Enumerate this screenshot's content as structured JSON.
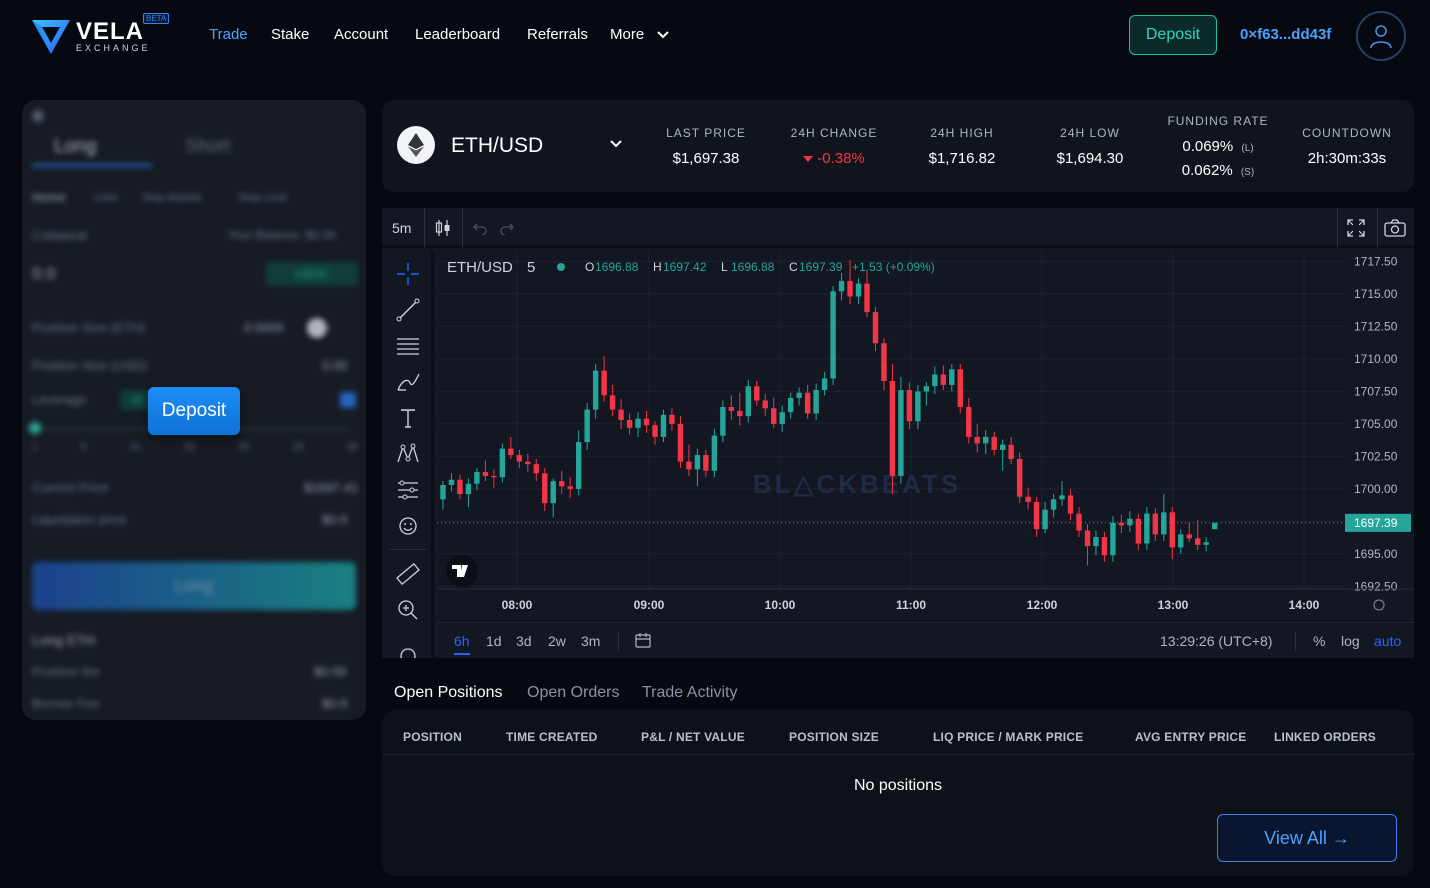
{
  "brand": {
    "name": "VELA",
    "sub": "EXCHANGE",
    "badge": "BETA"
  },
  "nav": {
    "items": [
      {
        "label": "Trade",
        "active": true
      },
      {
        "label": "Stake"
      },
      {
        "label": "Account"
      },
      {
        "label": "Leaderboard"
      },
      {
        "label": "Referrals"
      },
      {
        "label": "More"
      }
    ],
    "deposit_label": "Deposit",
    "wallet_address": "0×f63...dd43f"
  },
  "order_panel": {
    "tabs": [
      "Long",
      "Short"
    ],
    "order_types": [
      "Market",
      "Limit",
      "Stop Market",
      "Stop Limit"
    ],
    "collateral_label": "Collateral",
    "balance_label": "Your Balance: $0.00",
    "collateral_value": "0.0",
    "collateral_token": "USDC",
    "position_size_eth_label": "Position Size (ETH)",
    "position_size_eth_value": "0.0000",
    "position_size_usd_label": "Position Size (USD)",
    "position_size_usd_value": "0.00",
    "leverage_label": "Leverage",
    "leverage_value": "10",
    "leverage_marks": [
      "1",
      "5",
      "10",
      "15",
      "20",
      "25",
      "30"
    ],
    "leverage_level": 0.0,
    "current_price_label": "Current Price",
    "current_price_value": "$1697.41",
    "liquidation_label": "Liquidation price",
    "liquidation_value": "$0.0",
    "submit_label": "Long",
    "summary_title": "Long ETH",
    "position_fee_label": "Position fee",
    "position_fee_value": "$0.00",
    "borrow_fee_label": "Borrow Fee",
    "borrow_fee_value": "$0.0",
    "overlay_deposit_label": "Deposit"
  },
  "ticker": {
    "pair": "ETH/USD",
    "last_price_label": "LAST PRICE",
    "last_price": "$1,697.38",
    "change_label": "24H CHANGE",
    "change": "-0.38%",
    "high_label": "24H HIGH",
    "high": "$1,716.82",
    "low_label": "24H LOW",
    "low": "$1,694.30",
    "funding_label": "FUNDING RATE",
    "funding_long": "0.069%",
    "funding_long_tag": "(L)",
    "funding_short": "0.062%",
    "funding_short_tag": "(S)",
    "countdown_label": "COUNTDOWN",
    "countdown": "2h:30m:33s"
  },
  "chart": {
    "interval": "5m",
    "legend_pair": "ETH/USD",
    "legend_interval": "5",
    "ohlc": {
      "o_label": "O",
      "o": "1696.88",
      "h_label": "H",
      "h": "1697.42",
      "l_label": "L",
      "l": "1696.88",
      "c_label": "C",
      "c": "1697.39",
      "change": "+1.53 (+0.09%)"
    },
    "last_price_tag": "1697.39",
    "watermark": "BL△CKBEATS",
    "timeframes": [
      "6h",
      "1d",
      "3d",
      "2w",
      "3m"
    ],
    "active_timeframe": "6h",
    "clock": "13:29:26 (UTC+8)",
    "percent_label": "%",
    "log_label": "log",
    "auto_label": "auto"
  },
  "chart_data": {
    "type": "candlestick",
    "title": "",
    "x_ticks": [
      "08:00",
      "09:00",
      "10:00",
      "11:00",
      "12:00",
      "13:00",
      "14:00"
    ],
    "y_ticks": [
      "1717.50",
      "1715.00",
      "1712.50",
      "1710.00",
      "1707.50",
      "1705.00",
      "1702.50",
      "1700.00",
      "1697.50",
      "1695.00",
      "1692.50"
    ],
    "ylim": [
      1692.3,
      1718.3
    ],
    "colors": {
      "up": "#26a69a",
      "down": "#f23645"
    },
    "candles": [
      [
        1699.2,
        1700.6,
        1698.4,
        1700.3
      ],
      [
        1700.3,
        1701.2,
        1699.8,
        1700.7
      ],
      [
        1700.7,
        1701.1,
        1699.2,
        1699.6
      ],
      [
        1699.6,
        1700.8,
        1698.6,
        1700.4
      ],
      [
        1700.4,
        1701.6,
        1699.9,
        1701.3
      ],
      [
        1701.3,
        1702.2,
        1700.6,
        1701.0
      ],
      [
        1701.0,
        1701.5,
        1700.1,
        1700.9
      ],
      [
        1700.9,
        1703.5,
        1700.5,
        1703.1
      ],
      [
        1703.1,
        1704.0,
        1702.3,
        1702.6
      ],
      [
        1702.6,
        1703.0,
        1701.6,
        1702.1
      ],
      [
        1702.1,
        1702.7,
        1701.3,
        1701.9
      ],
      [
        1701.9,
        1702.3,
        1700.6,
        1701.2
      ],
      [
        1701.2,
        1701.6,
        1698.3,
        1698.9
      ],
      [
        1698.9,
        1700.8,
        1697.8,
        1700.6
      ],
      [
        1700.6,
        1701.4,
        1699.6,
        1700.2
      ],
      [
        1700.2,
        1700.9,
        1699.3,
        1700.0
      ],
      [
        1700.0,
        1704.5,
        1699.5,
        1703.6
      ],
      [
        1703.6,
        1706.6,
        1703.0,
        1706.1
      ],
      [
        1706.1,
        1709.6,
        1705.4,
        1709.1
      ],
      [
        1709.1,
        1710.2,
        1706.7,
        1707.2
      ],
      [
        1707.2,
        1708.0,
        1705.6,
        1706.1
      ],
      [
        1706.1,
        1706.9,
        1704.6,
        1705.3
      ],
      [
        1705.3,
        1705.8,
        1704.2,
        1704.7
      ],
      [
        1704.7,
        1705.9,
        1704.0,
        1705.4
      ],
      [
        1705.4,
        1706.0,
        1704.3,
        1704.9
      ],
      [
        1704.9,
        1705.2,
        1703.4,
        1704.0
      ],
      [
        1704.0,
        1706.1,
        1703.6,
        1705.7
      ],
      [
        1705.7,
        1706.2,
        1704.5,
        1705.0
      ],
      [
        1705.0,
        1705.6,
        1701.6,
        1702.1
      ],
      [
        1702.1,
        1703.4,
        1701.0,
        1701.5
      ],
      [
        1701.5,
        1703.1,
        1700.2,
        1702.6
      ],
      [
        1702.6,
        1703.0,
        1700.9,
        1701.4
      ],
      [
        1701.4,
        1704.6,
        1700.9,
        1704.1
      ],
      [
        1704.1,
        1706.8,
        1703.6,
        1706.3
      ],
      [
        1706.3,
        1707.2,
        1705.3,
        1706.0
      ],
      [
        1706.0,
        1707.4,
        1704.9,
        1705.6
      ],
      [
        1705.6,
        1708.4,
        1705.1,
        1707.9
      ],
      [
        1707.9,
        1708.3,
        1706.4,
        1706.8
      ],
      [
        1706.8,
        1707.3,
        1705.6,
        1706.2
      ],
      [
        1706.2,
        1707.0,
        1704.7,
        1705.0
      ],
      [
        1705.0,
        1706.4,
        1704.4,
        1705.9
      ],
      [
        1705.9,
        1707.4,
        1705.4,
        1707.0
      ],
      [
        1707.0,
        1707.8,
        1706.4,
        1707.4
      ],
      [
        1707.4,
        1708.0,
        1705.4,
        1705.8
      ],
      [
        1705.8,
        1708.1,
        1705.3,
        1707.6
      ],
      [
        1707.6,
        1709.0,
        1707.2,
        1708.5
      ],
      [
        1708.5,
        1715.6,
        1708.0,
        1715.2
      ],
      [
        1715.2,
        1716.6,
        1714.5,
        1716.0
      ],
      [
        1716.0,
        1717.6,
        1714.2,
        1714.8
      ],
      [
        1714.8,
        1716.2,
        1714.2,
        1715.8
      ],
      [
        1715.8,
        1716.8,
        1713.2,
        1713.6
      ],
      [
        1713.6,
        1714.0,
        1710.6,
        1711.2
      ],
      [
        1711.2,
        1711.6,
        1707.6,
        1708.3
      ],
      [
        1708.3,
        1709.6,
        1699.6,
        1701.0
      ],
      [
        1701.0,
        1708.6,
        1700.4,
        1707.6
      ],
      [
        1707.6,
        1708.2,
        1704.6,
        1705.2
      ],
      [
        1705.2,
        1708.0,
        1704.6,
        1707.5
      ],
      [
        1707.5,
        1708.2,
        1706.4,
        1707.9
      ],
      [
        1707.9,
        1709.4,
        1707.3,
        1708.8
      ],
      [
        1708.8,
        1709.5,
        1707.6,
        1708.0
      ],
      [
        1708.0,
        1709.6,
        1707.5,
        1709.2
      ],
      [
        1709.2,
        1709.6,
        1705.8,
        1706.3
      ],
      [
        1706.3,
        1707.0,
        1703.5,
        1704.0
      ],
      [
        1704.0,
        1705.0,
        1702.8,
        1703.5
      ],
      [
        1703.5,
        1704.5,
        1702.7,
        1704.0
      ],
      [
        1704.0,
        1704.4,
        1702.6,
        1703.0
      ],
      [
        1703.0,
        1703.8,
        1701.4,
        1703.4
      ],
      [
        1703.4,
        1704.0,
        1701.9,
        1702.3
      ],
      [
        1702.3,
        1702.8,
        1698.9,
        1699.4
      ],
      [
        1699.4,
        1700.1,
        1698.4,
        1699.0
      ],
      [
        1699.0,
        1699.4,
        1696.3,
        1696.9
      ],
      [
        1696.9,
        1699.0,
        1696.6,
        1698.4
      ],
      [
        1698.4,
        1699.6,
        1697.8,
        1699.2
      ],
      [
        1699.2,
        1700.6,
        1698.7,
        1699.5
      ],
      [
        1699.5,
        1700.0,
        1697.6,
        1698.1
      ],
      [
        1698.1,
        1698.6,
        1696.3,
        1696.8
      ],
      [
        1696.8,
        1697.3,
        1694.1,
        1695.6
      ],
      [
        1695.6,
        1696.8,
        1694.9,
        1696.3
      ],
      [
        1696.3,
        1696.7,
        1694.4,
        1694.9
      ],
      [
        1694.9,
        1697.9,
        1694.4,
        1697.4
      ],
      [
        1697.4,
        1698.0,
        1696.6,
        1697.2
      ],
      [
        1697.2,
        1698.3,
        1696.7,
        1697.7
      ],
      [
        1697.7,
        1698.1,
        1695.3,
        1695.8
      ],
      [
        1695.8,
        1698.6,
        1695.3,
        1698.1
      ],
      [
        1698.1,
        1698.5,
        1696.0,
        1696.5
      ],
      [
        1696.5,
        1699.6,
        1696.0,
        1698.2
      ],
      [
        1698.2,
        1698.6,
        1694.6,
        1695.5
      ],
      [
        1695.5,
        1696.9,
        1695.0,
        1696.5
      ],
      [
        1696.5,
        1697.4,
        1695.9,
        1696.2
      ],
      [
        1696.2,
        1697.6,
        1695.3,
        1695.7
      ],
      [
        1695.7,
        1696.3,
        1695.2,
        1695.9
      ],
      [
        1696.9,
        1697.4,
        1696.9,
        1697.4
      ]
    ]
  },
  "positions": {
    "tabs": [
      "Open Positions",
      "Open Orders",
      "Trade Activity"
    ],
    "active_tab": "Open Positions",
    "columns": [
      "POSITION",
      "TIME CREATED",
      "P&L / NET VALUE",
      "POSITION SIZE",
      "LIQ PRICE / MARK PRICE",
      "AVG ENTRY PRICE",
      "LINKED ORDERS"
    ],
    "empty_message": "No positions",
    "view_all_label": "View All →"
  }
}
